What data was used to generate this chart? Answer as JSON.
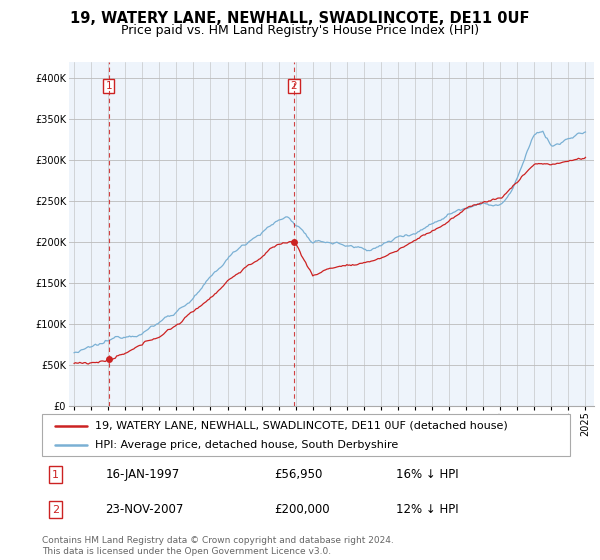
{
  "title": "19, WATERY LANE, NEWHALL, SWADLINCOTE, DE11 0UF",
  "subtitle": "Price paid vs. HM Land Registry's House Price Index (HPI)",
  "ylim": [
    0,
    420000
  ],
  "yticks": [
    0,
    50000,
    100000,
    150000,
    200000,
    250000,
    300000,
    350000,
    400000
  ],
  "ytick_labels": [
    "£0",
    "£50K",
    "£100K",
    "£150K",
    "£200K",
    "£250K",
    "£300K",
    "£350K",
    "£400K"
  ],
  "xlim_start": 1994.7,
  "xlim_end": 2025.5,
  "xticks": [
    1995,
    1996,
    1997,
    1998,
    1999,
    2000,
    2001,
    2002,
    2003,
    2004,
    2005,
    2006,
    2007,
    2008,
    2009,
    2010,
    2011,
    2012,
    2013,
    2014,
    2015,
    2016,
    2017,
    2018,
    2019,
    2020,
    2021,
    2022,
    2023,
    2024,
    2025
  ],
  "transaction1_x": 1997.04,
  "transaction1_y": 56950,
  "transaction2_x": 2007.9,
  "transaction2_y": 200000,
  "transaction1_label": "16-JAN-1997",
  "transaction1_price": "£56,950",
  "transaction1_hpi": "16% ↓ HPI",
  "transaction2_label": "23-NOV-2007",
  "transaction2_price": "£200,000",
  "transaction2_hpi": "12% ↓ HPI",
  "line_color_red": "#cc2222",
  "line_color_blue": "#7ab0d4",
  "vline_color": "#cc2222",
  "chart_bg": "#eef4fb",
  "legend_label_red": "19, WATERY LANE, NEWHALL, SWADLINCOTE, DE11 0UF (detached house)",
  "legend_label_blue": "HPI: Average price, detached house, South Derbyshire",
  "footer_text": "Contains HM Land Registry data © Crown copyright and database right 2024.\nThis data is licensed under the Open Government Licence v3.0.",
  "background_color": "#ffffff",
  "grid_color": "#bbbbbb",
  "title_fontsize": 10.5,
  "subtitle_fontsize": 9,
  "tick_fontsize": 7,
  "legend_fontsize": 8,
  "axis_label_fontsize": 8
}
